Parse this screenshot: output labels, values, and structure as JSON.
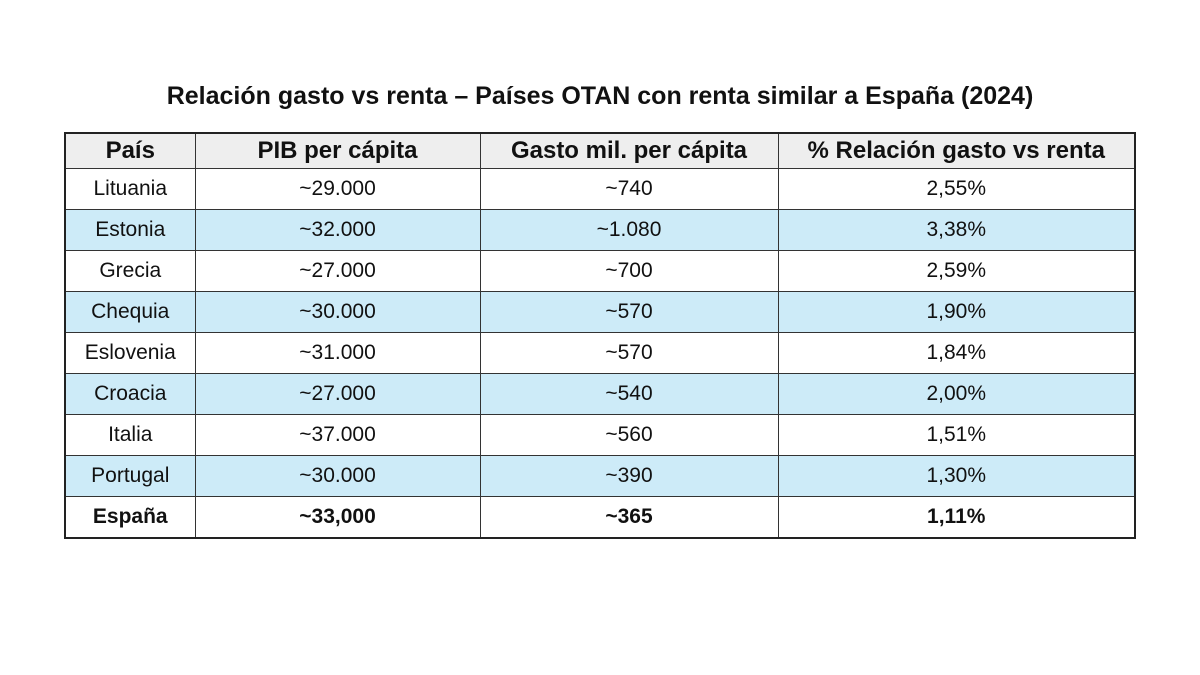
{
  "title": "Relación gasto vs renta – Países OTAN con renta similar a España (2024)",
  "table": {
    "headers": [
      "País",
      "PIB per cápita",
      "Gasto mil. per cápita",
      "% Relación gasto vs renta"
    ],
    "rows": [
      [
        "Lituania",
        "~29.000",
        "~740",
        "2,55%"
      ],
      [
        "Estonia",
        "~32.000",
        "~1.080",
        "3,38%"
      ],
      [
        "Grecia",
        "~27.000",
        "~700",
        "2,59%"
      ],
      [
        "Chequia",
        "~30.000",
        "~570",
        "1,90%"
      ],
      [
        "Eslovenia",
        "~31.000",
        "~570",
        "1,84%"
      ],
      [
        "Croacia",
        "~27.000",
        "~540",
        "2,00%"
      ],
      [
        "Italia",
        "~37.000",
        "~560",
        "1,51%"
      ],
      [
        "Portugal",
        "~30.000",
        "~390",
        "1,30%"
      ],
      [
        "España",
        "~33,000",
        "~365",
        "1,11%"
      ]
    ],
    "highlighted_row": "España"
  },
  "colors": {
    "header_bg": "#eeeeee",
    "alt_row_bg": "#cdebf8"
  }
}
